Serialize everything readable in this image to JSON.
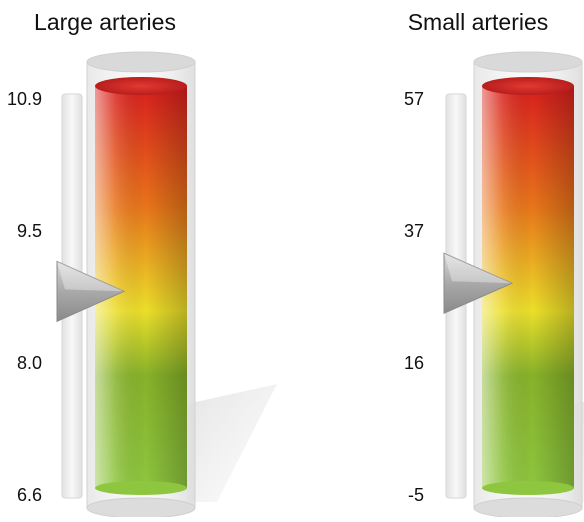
{
  "chart_data": [
    {
      "type": "gauge",
      "title": "Large arteries",
      "ylim": [
        6.6,
        10.9
      ],
      "ticks": [
        "10.9",
        "9.5",
        "8.0",
        "6.6"
      ],
      "value": 8.8
    },
    {
      "type": "gauge",
      "title": "Small arteries",
      "ylim": [
        -5,
        57
      ],
      "ticks": [
        "57",
        "37",
        "16",
        "-5"
      ],
      "value": 28
    }
  ],
  "colors": {
    "top": "#d81e1e",
    "upper": "#e8751a",
    "middle": "#ecdf2a",
    "lower": "#86b22a",
    "bottom": "#8ec63f"
  }
}
